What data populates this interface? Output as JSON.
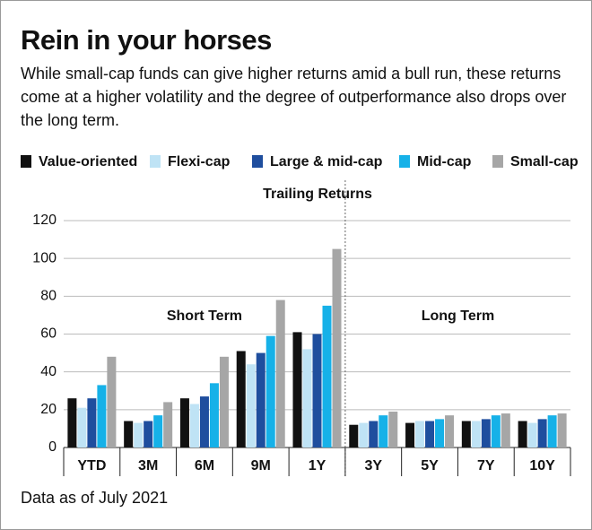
{
  "chart_data": {
    "type": "bar",
    "title": "Rein in your horses",
    "subtitle": "While small-cap funds can give higher returns amid a bull run, these returns come at a higher volatility and the degree of outperformance also drops over the long term.",
    "axis_title": "Trailing Returns",
    "section_labels": [
      "Short Term",
      "Long Term"
    ],
    "note": "Data as of July 2021",
    "categories": [
      "YTD",
      "3M",
      "6M",
      "9M",
      "1Y",
      "3Y",
      "5Y",
      "7Y",
      "10Y"
    ],
    "series": [
      {
        "name": "Value-oriented",
        "color": "#111111",
        "values": [
          26,
          14,
          26,
          51,
          61,
          12,
          13,
          14,
          14
        ]
      },
      {
        "name": "Flexi-cap",
        "color": "#bfe3f5",
        "values": [
          21,
          13,
          23,
          44,
          52,
          13,
          14,
          14,
          13
        ]
      },
      {
        "name": "Large & mid-cap",
        "color": "#1f4e9e",
        "values": [
          26,
          14,
          27,
          50,
          60,
          14,
          14,
          15,
          15
        ]
      },
      {
        "name": "Mid-cap",
        "color": "#16b1e8",
        "values": [
          33,
          17,
          34,
          59,
          75,
          17,
          15,
          17,
          17
        ]
      },
      {
        "name": "Small-cap",
        "color": "#a6a6a6",
        "values": [
          48,
          24,
          48,
          78,
          105,
          19,
          17,
          18,
          18
        ]
      }
    ],
    "ylim": [
      0,
      120
    ],
    "yticks": [
      0,
      20,
      40,
      60,
      80,
      100,
      120
    ],
    "grid": true
  }
}
